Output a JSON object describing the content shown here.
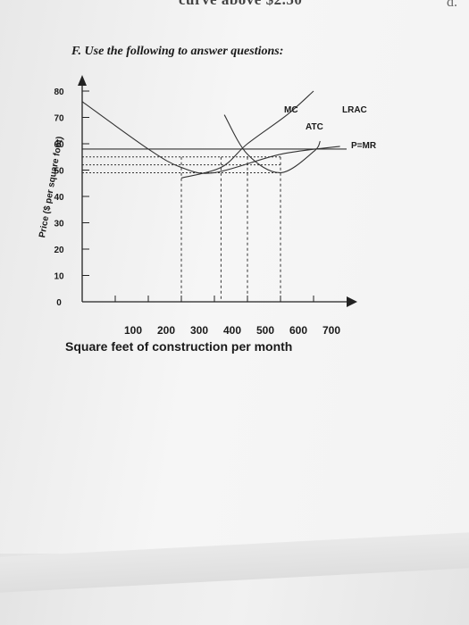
{
  "page": {
    "cut_text": "curve above $2.50",
    "corner_letter": "d.",
    "heading": "F. Use the following to answer questions:"
  },
  "chart_data": {
    "type": "line",
    "title": "",
    "xlabel": "Square feet of construction per month",
    "ylabel": "Price ($ per square foot)",
    "xlim": [
      0,
      800
    ],
    "ylim": [
      0,
      80
    ],
    "x_ticks": [
      100,
      200,
      300,
      400,
      500,
      600,
      700
    ],
    "y_ticks": [
      0,
      10,
      20,
      30,
      40,
      50,
      60,
      70,
      80
    ],
    "series": [
      {
        "name": "MC",
        "x": [
          300,
          420,
          500,
          620,
          700
        ],
        "y": [
          47,
          51,
          60,
          71,
          80
        ]
      },
      {
        "name": "ATC",
        "x": [
          430,
          500,
          600,
          700,
          720
        ],
        "y": [
          71,
          56,
          49,
          57,
          61
        ]
      },
      {
        "name": "LRAC",
        "x": [
          0,
          200,
          300,
          400,
          600,
          780
        ],
        "y": [
          76,
          58,
          51,
          49,
          56,
          59
        ]
      },
      {
        "name": "P=MR",
        "x": [
          0,
          800
        ],
        "y": [
          58,
          58
        ]
      }
    ],
    "reference_lines": {
      "horizontal_dotted": [
        55,
        52,
        49
      ],
      "vertical_dotted": [
        300,
        420,
        500,
        600
      ]
    }
  }
}
